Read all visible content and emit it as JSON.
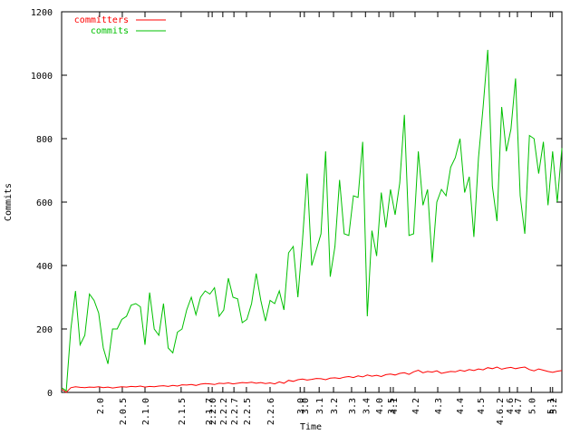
{
  "chart_data": {
    "type": "line",
    "xlabel": "Time",
    "ylabel": "Commits",
    "x": [
      0,
      1,
      2,
      3,
      4,
      5,
      6,
      7,
      8,
      9,
      10,
      11,
      12,
      13,
      14,
      15,
      16,
      17,
      18,
      19,
      20,
      21,
      22,
      23,
      24,
      25,
      26,
      27,
      28,
      29,
      30,
      31,
      32,
      33,
      34,
      35,
      36,
      37,
      38,
      39,
      40,
      41,
      42,
      43,
      44,
      45,
      46,
      47,
      48,
      49,
      50,
      51,
      52,
      53,
      54,
      55,
      56,
      57,
      58,
      59,
      60,
      61,
      62,
      63,
      64,
      65,
      66,
      67,
      68,
      69,
      70,
      71,
      72,
      73,
      74,
      75,
      76,
      77,
      78,
      79,
      80,
      81,
      82,
      83,
      84,
      85,
      86,
      87,
      88,
      89,
      90,
      91,
      92,
      93,
      94,
      95,
      96,
      97,
      98,
      99,
      100,
      101,
      102,
      103,
      104,
      105,
      106,
      107,
      108
    ],
    "series": [
      {
        "name": "committers",
        "color": "#ff0000",
        "values": [
          10,
          0,
          15,
          18,
          16,
          15,
          17,
          16,
          18,
          15,
          17,
          14,
          16,
          18,
          17,
          19,
          18,
          20,
          17,
          19,
          18,
          20,
          21,
          19,
          22,
          20,
          24,
          23,
          25,
          22,
          26,
          28,
          27,
          25,
          29,
          28,
          30,
          27,
          29,
          31,
          30,
          32,
          29,
          31,
          28,
          30,
          27,
          33,
          29,
          38,
          35,
          40,
          42,
          39,
          41,
          44,
          43,
          40,
          45,
          46,
          44,
          48,
          50,
          47,
          52,
          49,
          55,
          51,
          54,
          50,
          56,
          58,
          55,
          60,
          62,
          57,
          65,
          70,
          62,
          66,
          64,
          68,
          60,
          63,
          66,
          65,
          70,
          67,
          72,
          69,
          74,
          71,
          78,
          75,
          80,
          73,
          77,
          79,
          75,
          78,
          80,
          72,
          68,
          74,
          70,
          66,
          63,
          67,
          69
        ]
      },
      {
        "name": "commits",
        "color": "#00c000",
        "values": [
          15,
          5,
          200,
          320,
          150,
          180,
          310,
          290,
          250,
          140,
          90,
          200,
          200,
          230,
          240,
          275,
          280,
          270,
          150,
          315,
          200,
          180,
          280,
          140,
          125,
          190,
          200,
          260,
          300,
          245,
          300,
          320,
          310,
          330,
          240,
          260,
          360,
          300,
          295,
          220,
          230,
          280,
          375,
          290,
          225,
          290,
          280,
          320,
          260,
          440,
          460,
          300,
          480,
          690,
          400,
          450,
          500,
          760,
          365,
          460,
          670,
          500,
          495,
          620,
          615,
          790,
          240,
          510,
          430,
          630,
          520,
          640,
          560,
          660,
          875,
          495,
          500,
          760,
          590,
          640,
          410,
          600,
          640,
          620,
          710,
          740,
          800,
          630,
          680,
          490,
          740,
          900,
          1080,
          650,
          540,
          900,
          760,
          830,
          990,
          620,
          500,
          810,
          800,
          690,
          790,
          590,
          760,
          600,
          770
        ]
      }
    ],
    "xlim": [
      0,
      108
    ],
    "xticks": [
      {
        "value": 8.2,
        "label": "2.0"
      },
      {
        "value": 13.1,
        "label": "2.0.5"
      },
      {
        "value": 18,
        "label": "2.1.0"
      },
      {
        "value": 25.8,
        "label": "2.1.5"
      },
      {
        "value": 31.7,
        "label": "2.1.7"
      },
      {
        "value": 32.5,
        "label": "2.2.0"
      },
      {
        "value": 34.8,
        "label": "2.2.2"
      },
      {
        "value": 37.2,
        "label": "2.2.7"
      },
      {
        "value": 39.9,
        "label": "2.2.5"
      },
      {
        "value": 45,
        "label": "2.2.6"
      },
      {
        "value": 51.5,
        "label": "3.0"
      },
      {
        "value": 52.4,
        "label": "3.0"
      },
      {
        "value": 55.6,
        "label": "3.1"
      },
      {
        "value": 58.7,
        "label": "3.2"
      },
      {
        "value": 62.6,
        "label": "3.3"
      },
      {
        "value": 65.6,
        "label": "3.4"
      },
      {
        "value": 68.5,
        "label": "4.0"
      },
      {
        "value": 71,
        "label": "3.5"
      },
      {
        "value": 71.6,
        "label": "4.1"
      },
      {
        "value": 76.3,
        "label": "4.2"
      },
      {
        "value": 81.2,
        "label": "4.3"
      },
      {
        "value": 85.9,
        "label": "4.4"
      },
      {
        "value": 90.4,
        "label": "4.5"
      },
      {
        "value": 94.5,
        "label": "4.6.2"
      },
      {
        "value": 96.7,
        "label": "4.6"
      },
      {
        "value": 98.4,
        "label": "4.7"
      },
      {
        "value": 101.4,
        "label": "5.0"
      },
      {
        "value": 105.5,
        "label": "5.1"
      },
      {
        "value": 106,
        "label": "5.2"
      }
    ],
    "ylim": [
      0,
      1200
    ],
    "yticks": [
      0,
      200,
      400,
      600,
      800,
      1000,
      1200
    ],
    "legend": "top-left"
  }
}
